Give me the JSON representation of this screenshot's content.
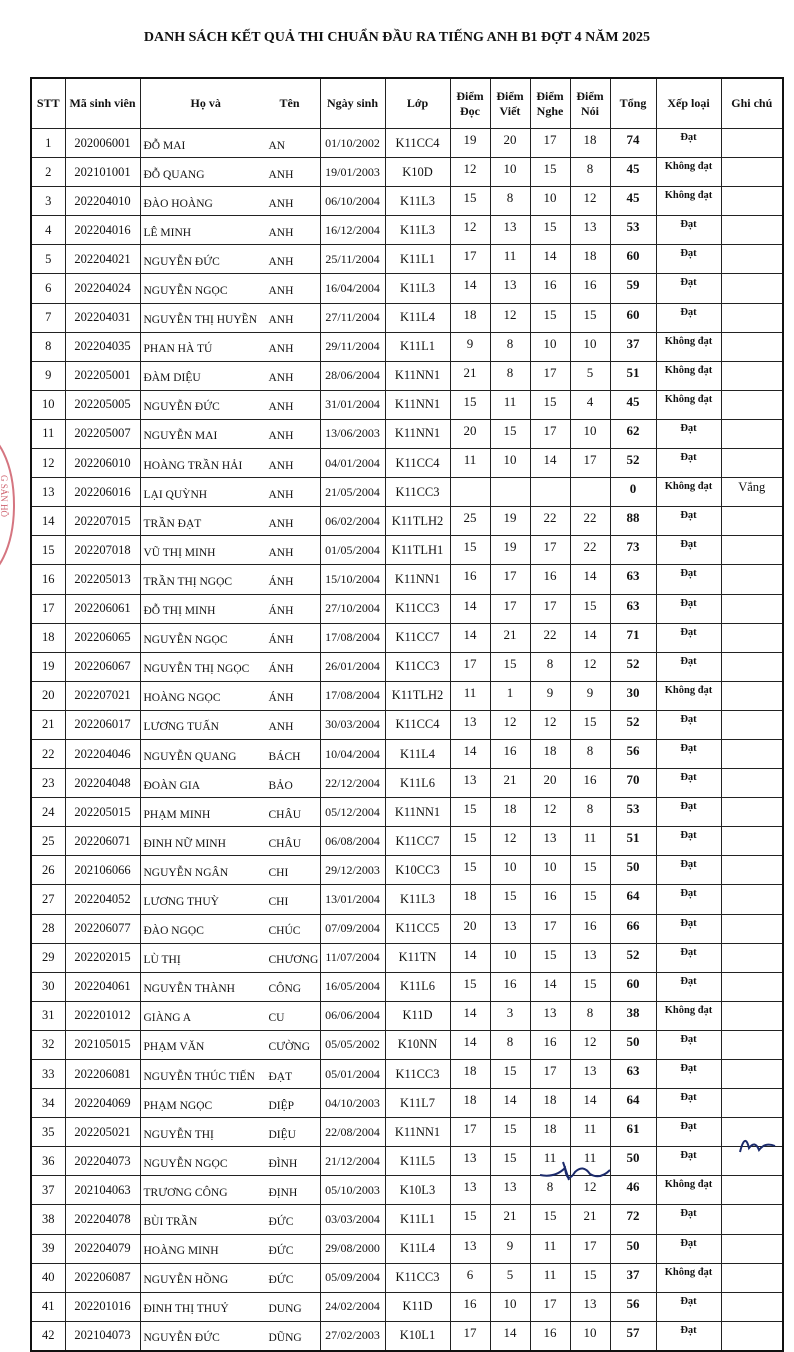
{
  "title": "DANH SÁCH KẾT QUẢ THI CHUẨN ĐẦU RA TIẾNG ANH B1 ĐỢT 4 NĂM 2025",
  "headers": {
    "stt": "STT",
    "ma": "Mã sinh viên",
    "ho": "Họ và",
    "ten": "Tên",
    "ngay": "Ngày sinh",
    "lop": "Lớp",
    "doc": [
      "Điểm",
      "Đọc"
    ],
    "viet": [
      "Điểm",
      "Viết"
    ],
    "nghe": [
      "Điểm",
      "Nghe"
    ],
    "noi": [
      "Điểm",
      "Nói"
    ],
    "tong": "Tổng",
    "xeploai": "Xếp loại",
    "ghichu": "Ghi chú"
  },
  "stamp_color": "#c33b4a",
  "stamp_text": "G SẢN HỒ",
  "rows": [
    [
      "1",
      "202006001",
      "ĐỖ MAI",
      "AN",
      "01/10/2002",
      "K11CC4",
      "19",
      "20",
      "17",
      "18",
      "74",
      "Đạt",
      ""
    ],
    [
      "2",
      "202101001",
      "ĐỖ QUANG",
      "ANH",
      "19/01/2003",
      "K10D",
      "12",
      "10",
      "15",
      "8",
      "45",
      "Không đạt",
      ""
    ],
    [
      "3",
      "202204010",
      "ĐÀO HOÀNG",
      "ANH",
      "06/10/2004",
      "K11L3",
      "15",
      "8",
      "10",
      "12",
      "45",
      "Không đạt",
      ""
    ],
    [
      "4",
      "202204016",
      "LÊ MINH",
      "ANH",
      "16/12/2004",
      "K11L3",
      "12",
      "13",
      "15",
      "13",
      "53",
      "Đạt",
      ""
    ],
    [
      "5",
      "202204021",
      "NGUYỄN ĐỨC",
      "ANH",
      "25/11/2004",
      "K11L1",
      "17",
      "11",
      "14",
      "18",
      "60",
      "Đạt",
      ""
    ],
    [
      "6",
      "202204024",
      "NGUYỄN NGỌC",
      "ANH",
      "16/04/2004",
      "K11L3",
      "14",
      "13",
      "16",
      "16",
      "59",
      "Đạt",
      ""
    ],
    [
      "7",
      "202204031",
      "NGUYỄN THỊ HUYỀN",
      "ANH",
      "27/11/2004",
      "K11L4",
      "18",
      "12",
      "15",
      "15",
      "60",
      "Đạt",
      ""
    ],
    [
      "8",
      "202204035",
      "PHAN HÀ TÚ",
      "ANH",
      "29/11/2004",
      "K11L1",
      "9",
      "8",
      "10",
      "10",
      "37",
      "Không đạt",
      ""
    ],
    [
      "9",
      "202205001",
      "ĐÀM DIỆU",
      "ANH",
      "28/06/2004",
      "K11NN1",
      "21",
      "8",
      "17",
      "5",
      "51",
      "Không đạt",
      ""
    ],
    [
      "10",
      "202205005",
      "NGUYỄN ĐỨC",
      "ANH",
      "31/01/2004",
      "K11NN1",
      "15",
      "11",
      "15",
      "4",
      "45",
      "Không đạt",
      ""
    ],
    [
      "11",
      "202205007",
      "NGUYỄN MAI",
      "ANH",
      "13/06/2003",
      "K11NN1",
      "20",
      "15",
      "17",
      "10",
      "62",
      "Đạt",
      ""
    ],
    [
      "12",
      "202206010",
      "HOÀNG TRẦN HẢI",
      "ANH",
      "04/01/2004",
      "K11CC4",
      "11",
      "10",
      "14",
      "17",
      "52",
      "Đạt",
      ""
    ],
    [
      "13",
      "202206016",
      "LẠI QUỲNH",
      "ANH",
      "21/05/2004",
      "K11CC3",
      "",
      "",
      "",
      "",
      "0",
      "Không đạt",
      "Vắng"
    ],
    [
      "14",
      "202207015",
      "TRẦN ĐẠT",
      "ANH",
      "06/02/2004",
      "K11TLH2",
      "25",
      "19",
      "22",
      "22",
      "88",
      "Đạt",
      ""
    ],
    [
      "15",
      "202207018",
      "VŨ THỊ MINH",
      "ANH",
      "01/05/2004",
      "K11TLH1",
      "15",
      "19",
      "17",
      "22",
      "73",
      "Đạt",
      ""
    ],
    [
      "16",
      "202205013",
      "TRẦN THỊ NGỌC",
      "ÁNH",
      "15/10/2004",
      "K11NN1",
      "16",
      "17",
      "16",
      "14",
      "63",
      "Đạt",
      ""
    ],
    [
      "17",
      "202206061",
      "ĐỖ THỊ MINH",
      "ÁNH",
      "27/10/2004",
      "K11CC3",
      "14",
      "17",
      "17",
      "15",
      "63",
      "Đạt",
      ""
    ],
    [
      "18",
      "202206065",
      "NGUYỄN NGỌC",
      "ÁNH",
      "17/08/2004",
      "K11CC7",
      "14",
      "21",
      "22",
      "14",
      "71",
      "Đạt",
      ""
    ],
    [
      "19",
      "202206067",
      "NGUYỄN THỊ NGỌC",
      "ÁNH",
      "26/01/2004",
      "K11CC3",
      "17",
      "15",
      "8",
      "12",
      "52",
      "Đạt",
      ""
    ],
    [
      "20",
      "202207021",
      "HOÀNG NGỌC",
      "ÁNH",
      "17/08/2004",
      "K11TLH2",
      "11",
      "1",
      "9",
      "9",
      "30",
      "Không đạt",
      ""
    ],
    [
      "21",
      "202206017",
      "LƯƠNG TUẤN",
      "ANH",
      "30/03/2004",
      "K11CC4",
      "13",
      "12",
      "12",
      "15",
      "52",
      "Đạt",
      ""
    ],
    [
      "22",
      "202204046",
      "NGUYỄN QUANG",
      "BÁCH",
      "10/04/2004",
      "K11L4",
      "14",
      "16",
      "18",
      "8",
      "56",
      "Đạt",
      ""
    ],
    [
      "23",
      "202204048",
      "ĐOÀN GIA",
      "BẢO",
      "22/12/2004",
      "K11L6",
      "13",
      "21",
      "20",
      "16",
      "70",
      "Đạt",
      ""
    ],
    [
      "24",
      "202205015",
      "PHẠM MINH",
      "CHÂU",
      "05/12/2004",
      "K11NN1",
      "15",
      "18",
      "12",
      "8",
      "53",
      "Đạt",
      ""
    ],
    [
      "25",
      "202206071",
      "ĐINH NỮ MINH",
      "CHÂU",
      "06/08/2004",
      "K11CC7",
      "15",
      "12",
      "13",
      "11",
      "51",
      "Đạt",
      ""
    ],
    [
      "26",
      "202106066",
      "NGUYỄN NGÂN",
      "CHI",
      "29/12/2003",
      "K10CC3",
      "15",
      "10",
      "10",
      "15",
      "50",
      "Đạt",
      ""
    ],
    [
      "27",
      "202204052",
      "LƯƠNG THUỲ",
      "CHI",
      "13/01/2004",
      "K11L3",
      "18",
      "15",
      "16",
      "15",
      "64",
      "Đạt",
      ""
    ],
    [
      "28",
      "202206077",
      "ĐÀO NGỌC",
      "CHÚC",
      "07/09/2004",
      "K11CC5",
      "20",
      "13",
      "17",
      "16",
      "66",
      "Đạt",
      ""
    ],
    [
      "29",
      "202202015",
      "LÙ THỊ",
      "CHƯƠNG",
      "11/07/2004",
      "K11TN",
      "14",
      "10",
      "15",
      "13",
      "52",
      "Đạt",
      ""
    ],
    [
      "30",
      "202204061",
      "NGUYỄN THÀNH",
      "CÔNG",
      "16/05/2004",
      "K11L6",
      "15",
      "16",
      "14",
      "15",
      "60",
      "Đạt",
      ""
    ],
    [
      "31",
      "202201012",
      "GIÀNG A",
      "CU",
      "06/06/2004",
      "K11D",
      "14",
      "3",
      "13",
      "8",
      "38",
      "Không đạt",
      ""
    ],
    [
      "32",
      "202105015",
      "PHẠM VĂN",
      "CƯỜNG",
      "05/05/2002",
      "K10NN",
      "14",
      "8",
      "16",
      "12",
      "50",
      "Đạt",
      ""
    ],
    [
      "33",
      "202206081",
      "NGUYỄN THÚC TIẾN",
      "ĐẠT",
      "05/01/2004",
      "K11CC3",
      "18",
      "15",
      "17",
      "13",
      "63",
      "Đạt",
      ""
    ],
    [
      "34",
      "202204069",
      "PHẠM NGỌC",
      "DIỆP",
      "04/10/2003",
      "K11L7",
      "18",
      "14",
      "18",
      "14",
      "64",
      "Đạt",
      ""
    ],
    [
      "35",
      "202205021",
      "NGUYỄN THỊ",
      "DIỆU",
      "22/08/2004",
      "K11NN1",
      "17",
      "15",
      "18",
      "11",
      "61",
      "Đạt",
      ""
    ],
    [
      "36",
      "202204073",
      "NGUYỄN NGỌC",
      "ĐÌNH",
      "21/12/2004",
      "K11L5",
      "13",
      "15",
      "11",
      "11",
      "50",
      "Đạt",
      ""
    ],
    [
      "37",
      "202104063",
      "TRƯƠNG CÔNG",
      "ĐỊNH",
      "05/10/2003",
      "K10L3",
      "13",
      "13",
      "8",
      "12",
      "46",
      "Không đạt",
      ""
    ],
    [
      "38",
      "202204078",
      "BÙI TRẦN",
      "ĐỨC",
      "03/03/2004",
      "K11L1",
      "15",
      "21",
      "15",
      "21",
      "72",
      "Đạt",
      ""
    ],
    [
      "39",
      "202204079",
      "HOÀNG MINH",
      "ĐỨC",
      "29/08/2000",
      "K11L4",
      "13",
      "9",
      "11",
      "17",
      "50",
      "Đạt",
      ""
    ],
    [
      "40",
      "202206087",
      "NGUYỄN HỒNG",
      "ĐỨC",
      "05/09/2004",
      "K11CC3",
      "6",
      "5",
      "11",
      "15",
      "37",
      "Không đạt",
      ""
    ],
    [
      "41",
      "202201016",
      "ĐINH THỊ THUỶ",
      "DUNG",
      "24/02/2004",
      "K11D",
      "16",
      "10",
      "17",
      "13",
      "56",
      "Đạt",
      ""
    ],
    [
      "42",
      "202104073",
      "NGUYỄN ĐỨC",
      "DŨNG",
      "27/02/2003",
      "K10L1",
      "17",
      "14",
      "16",
      "10",
      "57",
      "Đạt",
      ""
    ]
  ]
}
